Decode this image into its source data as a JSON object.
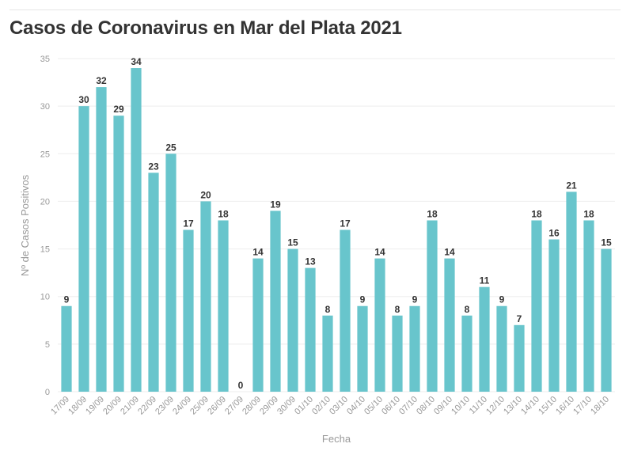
{
  "chart_data": {
    "type": "bar",
    "title": "Casos de Coronavirus en Mar del Plata 2021",
    "xlabel": "Fecha",
    "ylabel": "Nº de Casos Positivos",
    "ylim": [
      0,
      35
    ],
    "yticks": [
      "0",
      "5",
      "10",
      "15",
      "20",
      "25",
      "30",
      "35"
    ],
    "grid": true,
    "bar_color": "#68c5cc",
    "categories": [
      "17/09",
      "18/09",
      "19/09",
      "20/09",
      "21/09",
      "22/09",
      "23/09",
      "24/09",
      "25/09",
      "26/09",
      "27/09",
      "28/09",
      "29/09",
      "30/09",
      "01/10",
      "02/10",
      "03/10",
      "04/10",
      "05/10",
      "06/10",
      "07/10",
      "08/10",
      "09/10",
      "10/10",
      "11/10",
      "12/10",
      "13/10",
      "14/10",
      "15/10",
      "16/10",
      "17/10",
      "18/10"
    ],
    "values": [
      9,
      30,
      32,
      29,
      34,
      23,
      25,
      17,
      20,
      18,
      0,
      14,
      19,
      15,
      13,
      8,
      17,
      9,
      14,
      8,
      9,
      18,
      14,
      8,
      11,
      9,
      7,
      18,
      16,
      21,
      18,
      15
    ]
  }
}
